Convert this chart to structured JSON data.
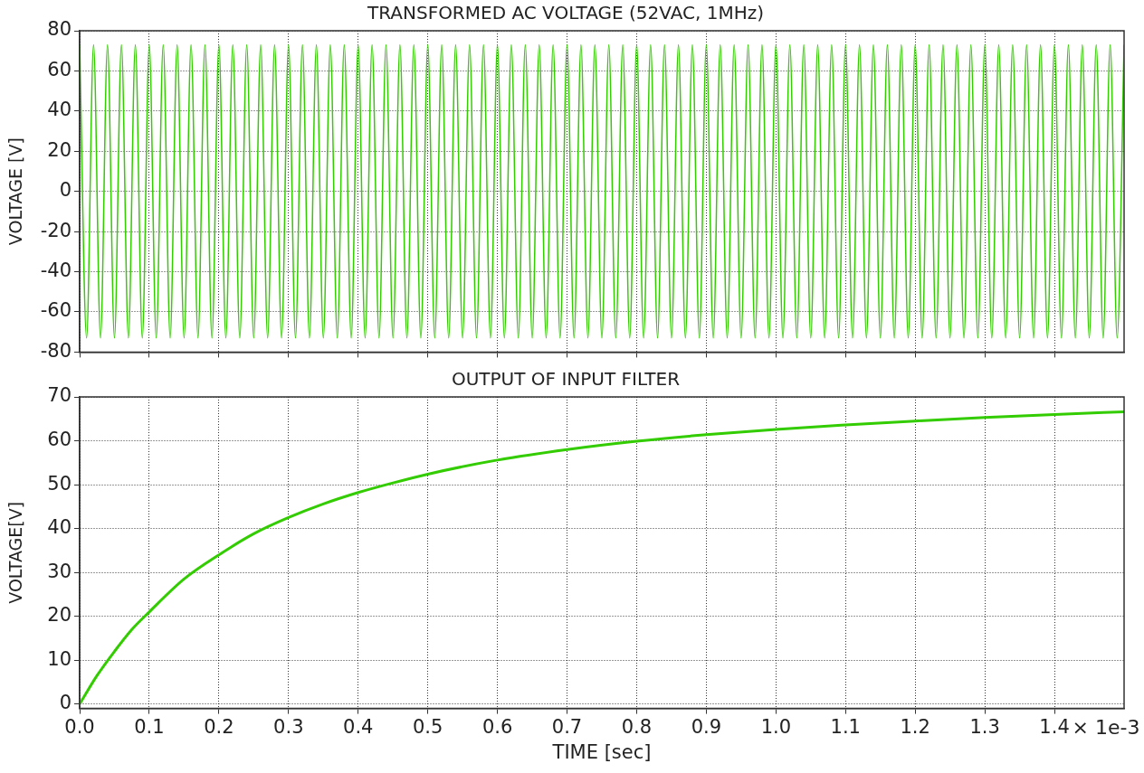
{
  "chart_data": [
    {
      "type": "line",
      "title": "TRANSFORMED AC VOLTAGE (52VAC, 1MHz)",
      "ylabel": "VOLTAGE [V]",
      "x": [
        0,
        0.01,
        0.02,
        0.03,
        0.04,
        0.05,
        0.06,
        0.07,
        0.08,
        0.09,
        0.1,
        0.11,
        0.12,
        0.13,
        0.14,
        0.15,
        0.16,
        0.17,
        0.18,
        0.19,
        0.2,
        0.21,
        0.22,
        0.23,
        0.24,
        0.25,
        0.26,
        0.27,
        0.28,
        0.29,
        0.3,
        0.31,
        0.32,
        0.33,
        0.34,
        0.35,
        0.36,
        0.37,
        0.38,
        0.39,
        0.4,
        0.41,
        0.42,
        0.43,
        0.44,
        0.45,
        0.46,
        0.47,
        0.48,
        0.49,
        0.5,
        0.51,
        0.52,
        0.53,
        0.54,
        0.55,
        0.56,
        0.57,
        0.58,
        0.59,
        0.6,
        0.61,
        0.62,
        0.63,
        0.64,
        0.65,
        0.66,
        0.67,
        0.68,
        0.69,
        0.7,
        0.71,
        0.72,
        0.73,
        0.74,
        0.75,
        0.76,
        0.77,
        0.78,
        0.79,
        0.8,
        0.81,
        0.82,
        0.83,
        0.84,
        0.85,
        0.86,
        0.87,
        0.88,
        0.89,
        0.9,
        0.91,
        0.92,
        0.93,
        0.94,
        0.95,
        0.96,
        0.97,
        0.98,
        0.99,
        1.0,
        1.01,
        1.02,
        1.03,
        1.04,
        1.05,
        1.06,
        1.07,
        1.08,
        1.09,
        1.1,
        1.11,
        1.12,
        1.13,
        1.14,
        1.15,
        1.16,
        1.17,
        1.18,
        1.19,
        1.2,
        1.21,
        1.22,
        1.23,
        1.24,
        1.25,
        1.26,
        1.27,
        1.28,
        1.29,
        1.3,
        1.31,
        1.32,
        1.33,
        1.34,
        1.35,
        1.36,
        1.37,
        1.38,
        1.39,
        1.4,
        1.41,
        1.42,
        1.43,
        1.44,
        1.45,
        1.46,
        1.47,
        1.48,
        1.49,
        1.5
      ],
      "series": [
        {
          "color": "#33cc00",
          "values": [
            73,
            -73,
            73,
            -73,
            73,
            -73,
            73,
            -73,
            73,
            -73,
            73,
            -73,
            73,
            -73,
            73,
            -73,
            73,
            -73,
            73,
            -73,
            73,
            -73,
            73,
            -73,
            73,
            -73,
            73,
            -73,
            73,
            -73,
            73,
            -73,
            73,
            -73,
            73,
            -73,
            73,
            -73,
            73,
            -73,
            73,
            -73,
            73,
            -73,
            73,
            -73,
            73,
            -73,
            73,
            -73,
            73,
            -73,
            73,
            -73,
            73,
            -73,
            73,
            -73,
            73,
            -73,
            73,
            -73,
            73,
            -73,
            73,
            -73,
            73,
            -73,
            73,
            -73,
            73,
            -73,
            73,
            -73,
            73,
            -73,
            73,
            -73,
            73,
            -73,
            73,
            -73,
            73,
            -73,
            73,
            -73,
            73,
            -73,
            73,
            -73,
            73,
            -73,
            73,
            -73,
            73,
            -73,
            73,
            -73,
            73,
            -73,
            73,
            -73,
            73,
            -73,
            73,
            -73,
            73,
            -73,
            73,
            -73,
            73,
            -73,
            73,
            -73,
            73,
            -73,
            73,
            -73,
            73,
            -73,
            73,
            -73,
            73,
            -73,
            73,
            -73,
            73,
            -73,
            73,
            -73,
            73,
            -73,
            73,
            -73,
            73,
            -73,
            73,
            -73,
            73,
            -73,
            73,
            -73,
            73,
            -73,
            73,
            -73,
            73,
            -73,
            73,
            -73,
            73
          ]
        }
      ],
      "xlim": [
        0,
        1.5
      ],
      "xticks": [
        0,
        0.1,
        0.2,
        0.3,
        0.4,
        0.5,
        0.6,
        0.7,
        0.8,
        0.9,
        1.0,
        1.1,
        1.2,
        1.3,
        1.4
      ],
      "ylim": [
        -80,
        80
      ],
      "yticks": [
        -80,
        -60,
        -40,
        -20,
        0,
        20,
        40,
        60,
        80
      ],
      "grid": true,
      "legend": false,
      "tick_labels": "y",
      "marker": "none",
      "line_style": "solid"
    },
    {
      "type": "line",
      "title": "OUTPUT OF INPUT FILTER",
      "xlabel": "TIME [sec]",
      "ylabel": "VOLTAGE[V]",
      "annotations": [
        "× 1e-3"
      ],
      "x": [
        0,
        0.025,
        0.05,
        0.075,
        0.1,
        0.15,
        0.2,
        0.25,
        0.3,
        0.35,
        0.4,
        0.45,
        0.5,
        0.6,
        0.7,
        0.8,
        0.9,
        1.0,
        1.1,
        1.2,
        1.3,
        1.4,
        1.5
      ],
      "series": [
        {
          "color": "#33cc00",
          "values": [
            0,
            6.5,
            12,
            17,
            21,
            28.5,
            34,
            38.8,
            42.5,
            45.6,
            48.2,
            50.4,
            52.4,
            55.6,
            58,
            59.9,
            61.4,
            62.6,
            63.6,
            64.5,
            65.3,
            66,
            66.6
          ]
        }
      ],
      "xlim": [
        0,
        1.5
      ],
      "xticks": [
        {
          "value": 0,
          "label": "0.0"
        },
        0.1,
        0.2,
        0.3,
        0.4,
        0.5,
        0.6,
        0.7,
        0.8,
        0.9,
        {
          "value": 1,
          "label": "1.0"
        },
        1.1,
        1.2,
        1.3,
        1.4
      ],
      "ylim": [
        -1,
        70
      ],
      "yticks": [
        0,
        10,
        20,
        30,
        40,
        50,
        60,
        70
      ],
      "grid": true,
      "legend": false,
      "marker": "none",
      "line_style": "solid"
    }
  ]
}
